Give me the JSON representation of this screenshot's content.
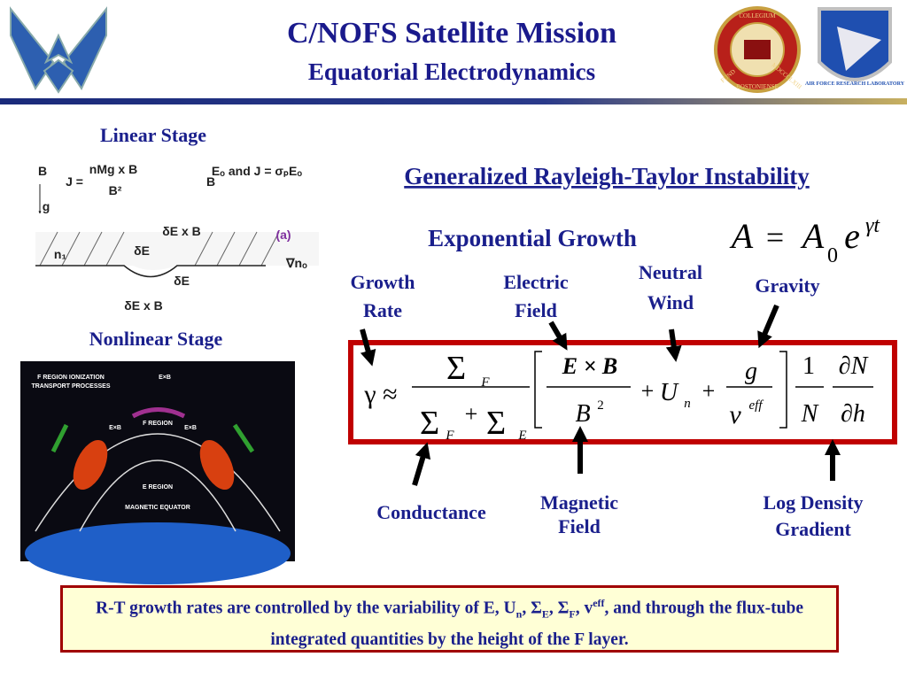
{
  "header": {
    "title": "C/NOFS Satellite Mission",
    "subtitle": "Equatorial Electrodynamics"
  },
  "logos": {
    "boston_college": [
      "COLLEGIUM",
      "BOSTONIENSE",
      "FUND",
      "MDCCCLXIII"
    ],
    "afrl": "AIR FORCE RESEARCH LABORATORY"
  },
  "linear_stage": {
    "label": "Linear Stage",
    "annotations": [
      "B",
      "J =",
      "nMg x B",
      "B²",
      "g",
      "B",
      "Eₒ and J = σₚEₒ",
      "n₁",
      "δE x B",
      "δE",
      "δE",
      "(a)",
      "∇nₒ",
      "δE x B"
    ]
  },
  "nonlinear_stage": {
    "label": "Nonlinear Stage",
    "annotations": [
      "F REGION IONIZATION",
      "TRANSPORT PROCESSES",
      "E×B",
      "E×B",
      "E×B",
      "F REGION",
      "E REGION",
      "MAGNETIC EQUATOR"
    ]
  },
  "rayleigh_taylor": {
    "heading": "Generalized Rayleigh-Taylor Instability",
    "growth_label": "Exponential Growth",
    "growth_formula": [
      "A",
      "=",
      "A",
      "0",
      "e",
      "γt"
    ],
    "labels": {
      "growth_rate": [
        "Growth",
        "Rate"
      ],
      "electric_field": [
        "Electric",
        "Field"
      ],
      "neutral_wind": [
        "Neutral",
        "Wind"
      ],
      "gravity": "Gravity",
      "conductance": "Conductance",
      "magnetic_field": [
        "Magnetic",
        "Field"
      ],
      "log_density_gradient": [
        "Log Density",
        "Gradient"
      ]
    },
    "equation": [
      "γ ≈",
      "Σ",
      "F",
      "Σ",
      "F",
      "+",
      "Σ",
      "E",
      "E × B",
      "B",
      "2",
      "+",
      "U",
      "n",
      "+",
      "g",
      "ν",
      "eff",
      "1",
      "N",
      "∂N",
      "∂h"
    ]
  },
  "note": {
    "parts": [
      "R-T growth rates are controlled by the variability of E, U",
      "n",
      ", Σ",
      "E",
      ", Σ",
      "F",
      ", v",
      "eff",
      ", and through the flux-tube integrated quantities by the height of the F layer."
    ]
  }
}
